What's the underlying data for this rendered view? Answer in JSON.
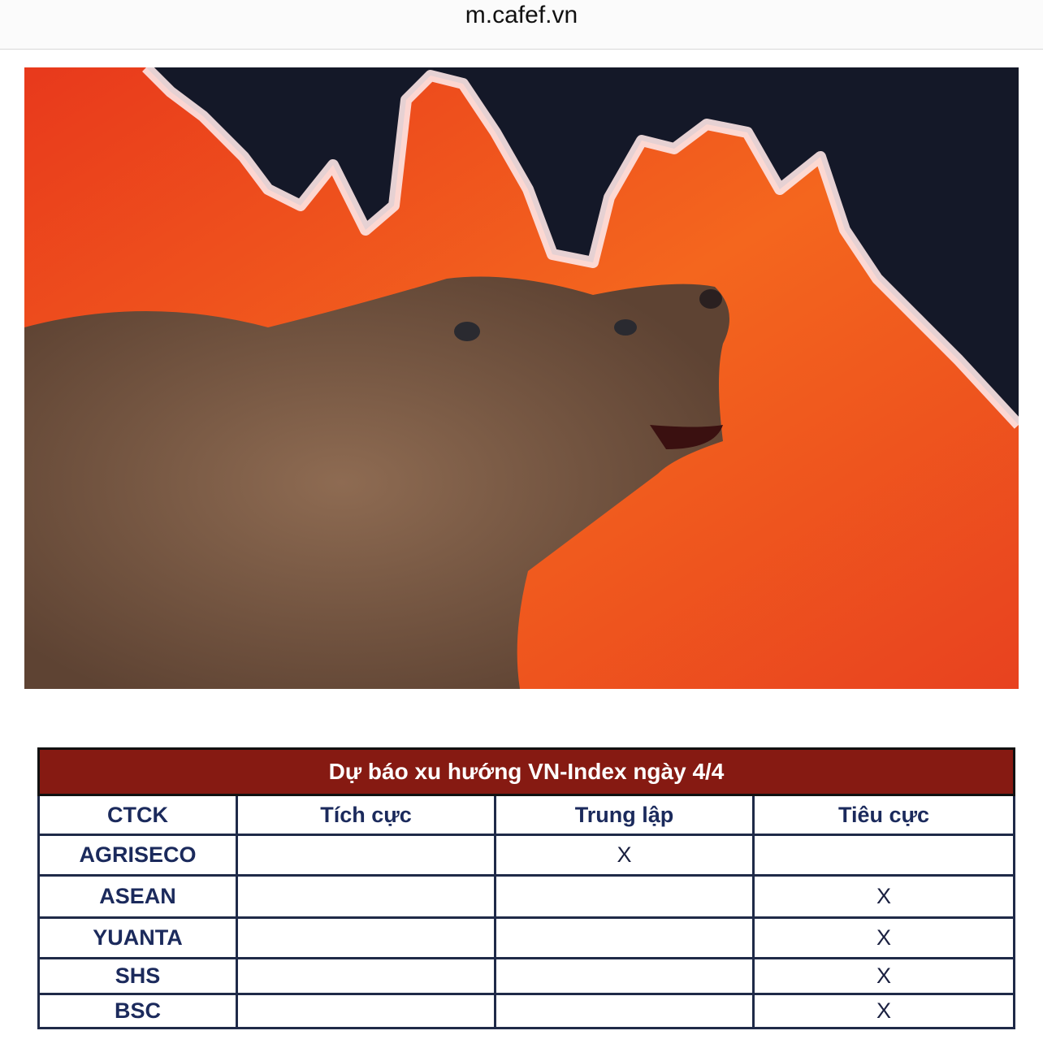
{
  "browser": {
    "url": "m.cafef.vn"
  },
  "hero_image": {
    "subject": "bear-in-front-of-falling-stock-chart",
    "colors": {
      "background": "#f0521e",
      "dark": "#141828",
      "line": "#ffffff",
      "bear": "#7a5a45"
    }
  },
  "table": {
    "title": "Dự báo xu hướng VN-Index ngày 4/4",
    "headers": [
      "CTCK",
      "Tích cực",
      "Trung lập",
      "Tiêu cực"
    ],
    "rows": [
      [
        "AGRISECO",
        "",
        "X",
        ""
      ],
      [
        "ASEAN",
        "",
        "",
        "X"
      ],
      [
        "YUANTA",
        "",
        "",
        "X"
      ],
      [
        "SHS",
        "",
        "",
        "X"
      ],
      [
        "BSC",
        "",
        "",
        "X"
      ]
    ],
    "colors": {
      "title_bg": "#861a12",
      "text": "#1b2a5c"
    }
  }
}
